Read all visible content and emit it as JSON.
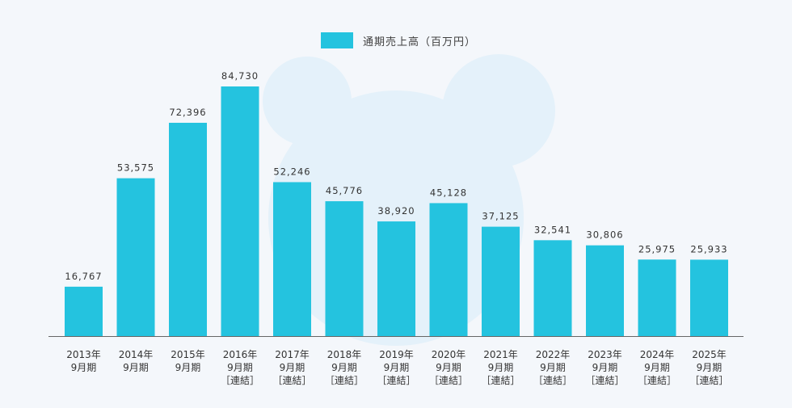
{
  "colors": {
    "bar": "#24c3df",
    "mascot": "#e4f1fa",
    "axis": "#666666",
    "text": "#333333"
  },
  "chart_data": {
    "type": "bar",
    "categories": [
      [
        "2013年",
        "9月期"
      ],
      [
        "2014年",
        "9月期"
      ],
      [
        "2015年",
        "9月期"
      ],
      [
        "2016年",
        "9月期",
        "［連結］"
      ],
      [
        "2017年",
        "9月期",
        "［連結］"
      ],
      [
        "2018年",
        "9月期",
        "［連結］"
      ],
      [
        "2019年",
        "9月期",
        "［連結］"
      ],
      [
        "2020年",
        "9月期",
        "［連結］"
      ],
      [
        "2021年",
        "9月期",
        "［連結］"
      ],
      [
        "2022年",
        "9月期",
        "［連結］"
      ],
      [
        "2023年",
        "9月期",
        "［連結］"
      ],
      [
        "2024年",
        "9月期",
        "［連結］"
      ],
      [
        "2025年",
        "9月期",
        "［連結］"
      ]
    ],
    "series": [
      {
        "name": "通期売上高（百万円）",
        "values": [
          16767,
          53575,
          72396,
          84730,
          52246,
          45776,
          38920,
          45128,
          37125,
          32541,
          30806,
          25975,
          25933
        ]
      }
    ],
    "value_labels": [
      "16,767",
      "53,575",
      "72,396",
      "84,730",
      "52,246",
      "45,776",
      "38,920",
      "45,128",
      "37,125",
      "32,541",
      "30,806",
      "25,975",
      "25,933"
    ],
    "ylim": [
      0,
      84730
    ],
    "grid": false,
    "legend_position": "top-center"
  }
}
